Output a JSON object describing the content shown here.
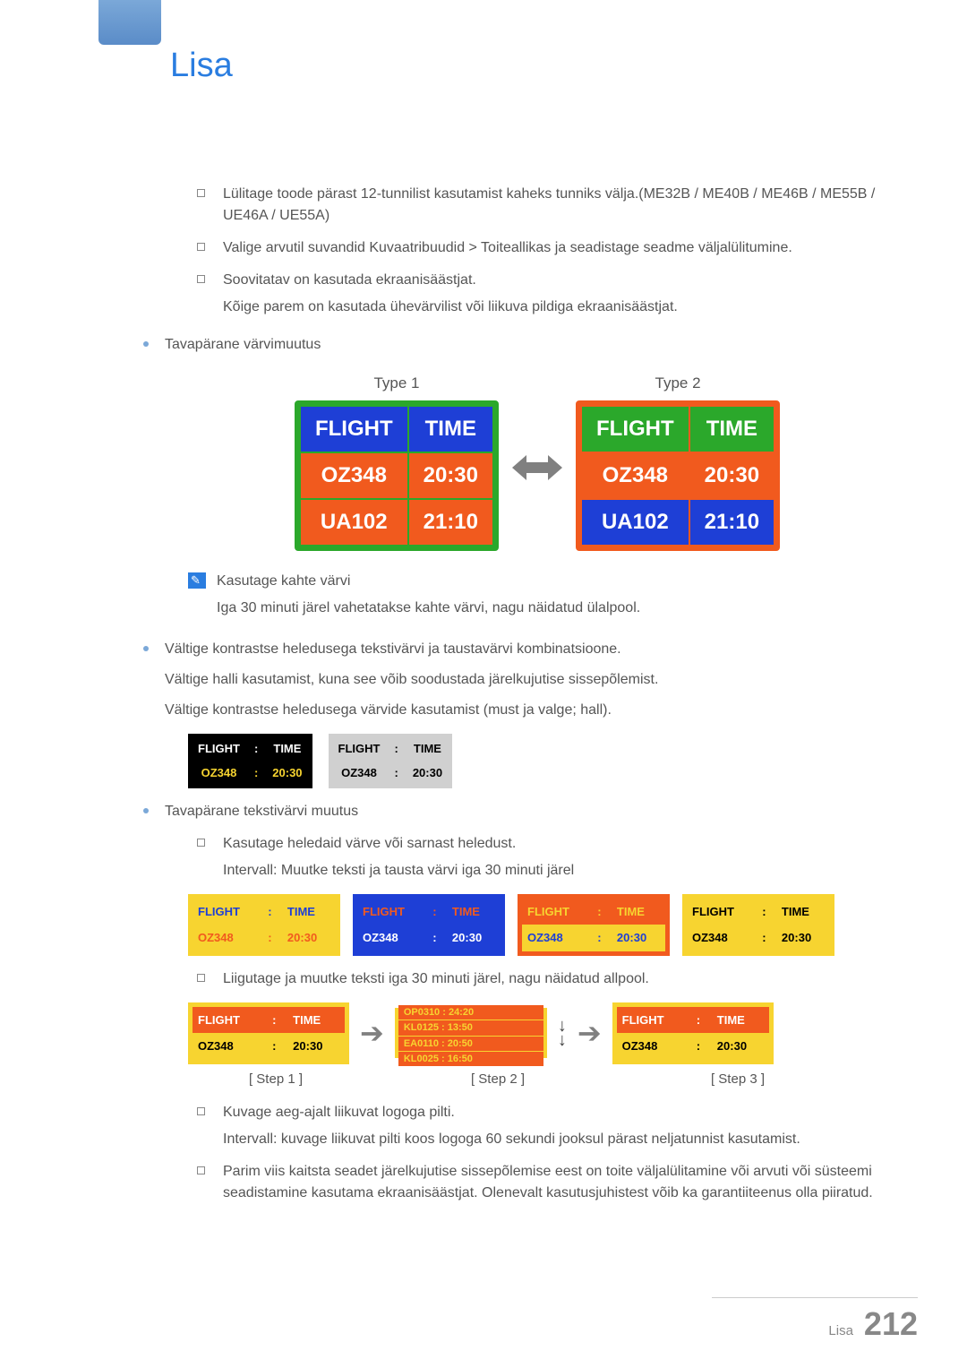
{
  "title": "Lisa",
  "bullets": {
    "b1": "Lülitage toode pärast 12-tunnilist kasutamist kaheks tunniks välja.(ME32B / ME40B / ME46B / ME55B / UE46A / UE55A)",
    "b2": "Valige arvutil suvandid Kuvaatribuudid > Toiteallikas ja seadistage seadme väljalülitumine.",
    "b3": "Soovitatav on kasutada ekraanisäästjat.",
    "b3_sub": "Kõige parem on kasutada ühevärvilist või liikuva pildiga ekraanisäästjat.",
    "dot1": "Tavapärane värvimuutus",
    "note1": "Kasutage kahte värvi",
    "note1_sub": "Iga 30 minuti järel vahetatakse kahte värvi, nagu näidatud ülalpool.",
    "dot2": "Vältige kontrastse heledusega tekstivärvi ja taustavärvi kombinatsioone.",
    "dot2_sub1": "Vältige halli kasutamist, kuna see võib soodustada järelkujutise sissepõlemist.",
    "dot2_sub2": "Vältige kontrastse heledusega värvide kasutamist (must ja valge; hall).",
    "dot3": "Tavapärane tekstivärvi muutus",
    "sq1": "Kasutage heledaid värve või sarnast heledust.",
    "sq1_sub": "Intervall: Muutke teksti ja tausta värvi iga 30 minuti järel",
    "sq2": "Liigutage ja muutke teksti iga 30 minuti järel, nagu näidatud allpool.",
    "sq3": "Kuvage aeg-ajalt liikuvat logoga pilti.",
    "sq3_sub": "Intervall: kuvage liikuvat pilti koos logoga 60 sekundi jooksul pärast neljatunnist kasutamist.",
    "sq4": "Parim viis kaitsta seadet järelkujutise sissepõlemise eest on toite väljalülitamine või arvuti või süsteemi seadistamine kasutama ekraanisäästjat. Olenevalt kasutusjuhistest võib ka garantiiteenus olla piiratud."
  },
  "type_labels": {
    "t1": "Type 1",
    "t2": "Type 2"
  },
  "big_table": {
    "headers": [
      "FLIGHT",
      "TIME"
    ],
    "rows": [
      [
        "OZ348",
        "20:30"
      ],
      [
        "UA102",
        "21:10"
      ]
    ],
    "type1": {
      "border_color": "#2ba82b",
      "header_bg": "#1e3fd6",
      "header_color": "#ffffff",
      "row_bg": "#f15a1e",
      "row_color": "#ffffff",
      "cell_border": "#2ba82b"
    },
    "type2": {
      "border_color": "#f15a1e",
      "header_bg": "#2ba82b",
      "header_color": "#ffffff",
      "row1_bg": "#f15a1e",
      "row1_color": "#ffffff",
      "row2_bg": "#1e3fd6",
      "row2_color": "#ffffff",
      "cell_border": "#f15a1e"
    }
  },
  "small_tables": {
    "headers": [
      "FLIGHT",
      ":",
      "TIME"
    ],
    "row": [
      "OZ348",
      ":",
      "20:30"
    ],
    "t1": {
      "bg": "#000000",
      "header_color": "#ffffff",
      "row_color": "#f7d430"
    },
    "t2": {
      "bg": "#d0d0d0",
      "header_color": "#000000",
      "row_color": "#000000"
    }
  },
  "color_boxes": [
    {
      "bg": "#f7d430",
      "header_color": "#1e3fd6",
      "row_color": "#f15a1e"
    },
    {
      "bg": "#1e3fd6",
      "header_color": "#f15a1e",
      "row_color": "#ffffff"
    },
    {
      "bg": "#f15a1e",
      "header_color": "#f7d430",
      "row_color": "#1e3fd6",
      "row_bg": "#f7d430"
    },
    {
      "bg": "#f7d430",
      "header_color": "#000000",
      "row_color": "#000000"
    }
  ],
  "steps": {
    "labels": [
      "[ Step 1 ]",
      "[ Step 2 ]",
      "[ Step 3 ]"
    ],
    "box": {
      "bg": "#f7d430",
      "header_bg": "#f15a1e",
      "header_color": "#ffffff",
      "row_color": "#000000"
    },
    "scroll": {
      "bg": "#f7d430",
      "line_bg": "#f15a1e",
      "line_color": "#f7d430",
      "lines": [
        "OP0310  :  24:20",
        "KL0125  :  13:50",
        "EA0110  :  20:50",
        "KL0025  :  16:50"
      ]
    }
  },
  "footer": {
    "text": "Lisa",
    "page": "212"
  }
}
